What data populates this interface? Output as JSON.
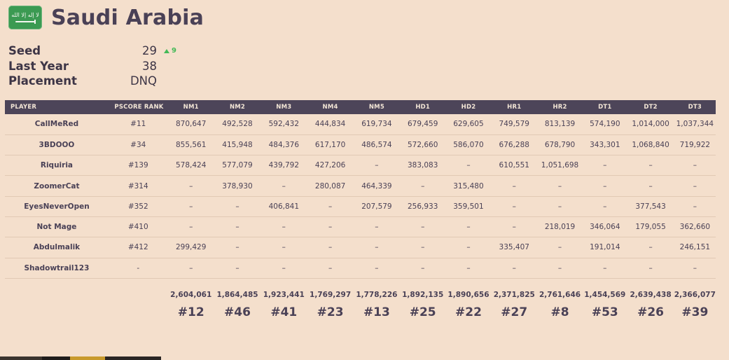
{
  "header": {
    "country": "Saudi Arabia",
    "flag_icon": "saudi-arabia-flag-icon",
    "flag_color": "#3b9a52"
  },
  "meta": [
    {
      "label": "Seed",
      "value": "29",
      "delta": "9",
      "delta_color": "#43b957"
    },
    {
      "label": "Last Year",
      "value": "38",
      "delta": ""
    },
    {
      "label": "Placement",
      "value": "DNQ",
      "delta": ""
    }
  ],
  "table": {
    "headers": {
      "player": "PLAYER",
      "rank": "PSCORE RANK",
      "maps": [
        "NM1",
        "NM2",
        "NM3",
        "NM4",
        "NM5",
        "HD1",
        "HD2",
        "HR1",
        "HR2",
        "DT1",
        "DT2",
        "DT3"
      ]
    },
    "rows": [
      {
        "name": "CallMeRed",
        "rank": "#11",
        "scores": [
          "870,647",
          "492,528",
          "592,432",
          "444,834",
          "619,734",
          "679,459",
          "629,605",
          "749,579",
          "813,139",
          "574,190",
          "1,014,000",
          "1,037,344"
        ]
      },
      {
        "name": "3BDOOO",
        "rank": "#34",
        "scores": [
          "855,561",
          "415,948",
          "484,376",
          "617,170",
          "486,574",
          "572,660",
          "586,070",
          "676,288",
          "678,790",
          "343,301",
          "1,068,840",
          "719,922"
        ]
      },
      {
        "name": "Riquiria",
        "rank": "#139",
        "scores": [
          "578,424",
          "577,079",
          "439,792",
          "427,206",
          "–",
          "383,083",
          "–",
          "610,551",
          "1,051,698",
          "–",
          "–",
          "–"
        ]
      },
      {
        "name": "ZoomerCat",
        "rank": "#314",
        "scores": [
          "–",
          "378,930",
          "–",
          "280,087",
          "464,339",
          "–",
          "315,480",
          "–",
          "–",
          "–",
          "–",
          "–"
        ]
      },
      {
        "name": "EyesNeverOpen",
        "rank": "#352",
        "scores": [
          "–",
          "–",
          "406,841",
          "–",
          "207,579",
          "256,933",
          "359,501",
          "–",
          "–",
          "–",
          "377,543",
          "–"
        ]
      },
      {
        "name": "Not Mage",
        "rank": "#410",
        "scores": [
          "–",
          "–",
          "–",
          "–",
          "–",
          "–",
          "–",
          "–",
          "218,019",
          "346,064",
          "179,055",
          "362,660"
        ]
      },
      {
        "name": "Abdulmalik",
        "rank": "#412",
        "scores": [
          "299,429",
          "–",
          "–",
          "–",
          "–",
          "–",
          "–",
          "335,407",
          "–",
          "191,014",
          "–",
          "246,151"
        ]
      },
      {
        "name": "Shadowtrail123",
        "rank": "-",
        "scores": [
          "–",
          "–",
          "–",
          "–",
          "–",
          "–",
          "–",
          "–",
          "–",
          "–",
          "–",
          "–"
        ]
      }
    ],
    "totals": [
      "2,604,061",
      "1,864,485",
      "1,923,441",
      "1,769,297",
      "1,778,226",
      "1,892,135",
      "1,890,656",
      "2,371,825",
      "2,761,646",
      "1,454,569",
      "2,639,438",
      "2,366,077"
    ],
    "map_ranks": [
      "#12",
      "#46",
      "#41",
      "#23",
      "#13",
      "#25",
      "#22",
      "#27",
      "#8",
      "#53",
      "#26",
      "#39"
    ]
  }
}
